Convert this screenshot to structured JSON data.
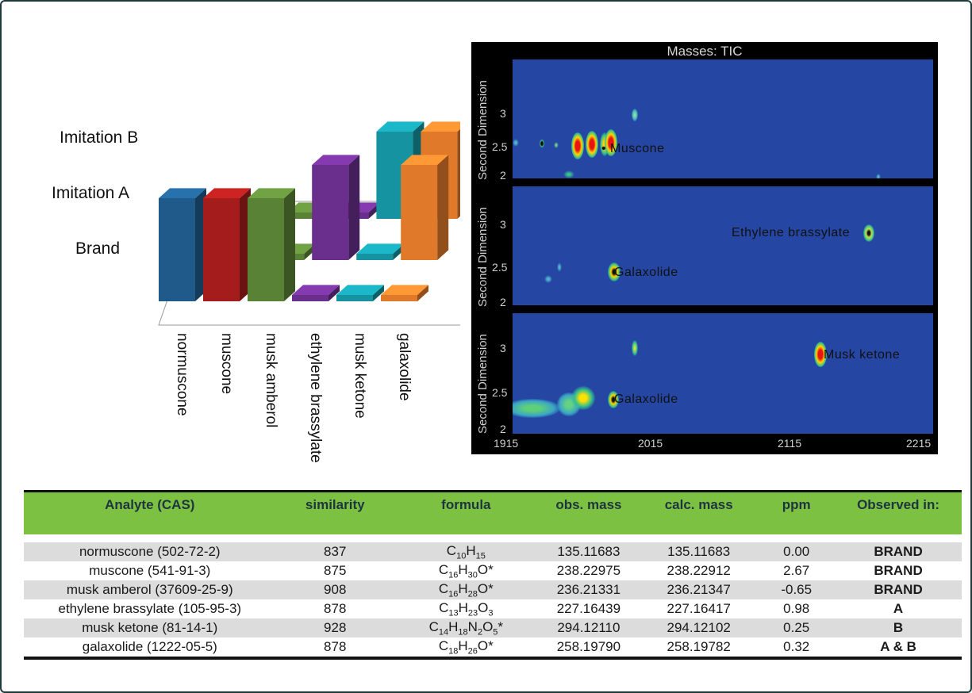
{
  "bar3d": {
    "row_labels": [
      "Imitation B",
      "Imitation A",
      "Brand"
    ],
    "categories": [
      "normuscone",
      "muscone",
      "musk amberol",
      "ethylene brassylate",
      "musk ketone",
      "galaxolide"
    ],
    "colors": [
      "#1f5a8a",
      "#a51c1c",
      "#5a8236",
      "#6a2f8c",
      "#1593a0",
      "#e07a2a"
    ],
    "present": {
      "Brand": [
        true,
        true,
        true,
        false,
        false,
        false
      ],
      "Imitation A": [
        false,
        false,
        false,
        true,
        false,
        true
      ],
      "Imitation B": [
        false,
        false,
        false,
        false,
        true,
        true
      ]
    }
  },
  "heatmap": {
    "title": "Masses: TIC",
    "ylabel": "Second Dimension",
    "yticks": [
      "3",
      "2.5",
      "2"
    ],
    "xticks": [
      "1915",
      "2015",
      "2115",
      "2215"
    ],
    "panel1_labels": [
      "Muscone"
    ],
    "panel2_labels": [
      "Ethylene brassylate",
      "Galaxolide"
    ],
    "panel3_labels": [
      "Musk ketone",
      "Galaxolide"
    ]
  },
  "table": {
    "headers": [
      "Analyte (CAS)",
      "similarity",
      "formula",
      "obs. mass",
      "calc. mass",
      "ppm",
      "Observed in:"
    ],
    "rows": [
      {
        "analyte": "normuscone (502-72-2)",
        "similarity": "837",
        "formula": [
          [
            "C",
            "10"
          ],
          [
            "H",
            "15"
          ]
        ],
        "formula_suffix": "",
        "obs": "135.11683",
        "calc": "135.11683",
        "ppm": "0.00",
        "observed": "BRAND"
      },
      {
        "analyte": "muscone (541-91-3)",
        "similarity": "875",
        "formula": [
          [
            "C",
            "16"
          ],
          [
            "H",
            "30"
          ],
          [
            "O",
            ""
          ]
        ],
        "formula_suffix": "*",
        "obs": "238.22975",
        "calc": "238.22912",
        "ppm": "2.67",
        "observed": "BRAND"
      },
      {
        "analyte": "musk amberol (37609-25-9)",
        "similarity": "908",
        "formula": [
          [
            "C",
            "16"
          ],
          [
            "H",
            "28"
          ],
          [
            "O",
            ""
          ]
        ],
        "formula_suffix": "*",
        "obs": "236.21331",
        "calc": "236.21347",
        "ppm": "-0.65",
        "observed": "BRAND"
      },
      {
        "analyte": "ethylene brassylate (105-95-3)",
        "similarity": "878",
        "formula": [
          [
            "C",
            "13"
          ],
          [
            "H",
            "23"
          ],
          [
            "O",
            "3"
          ]
        ],
        "formula_suffix": "",
        "obs": "227.16439",
        "calc": "227.16417",
        "ppm": "0.98",
        "observed": "A"
      },
      {
        "analyte": "musk ketone (81-14-1)",
        "similarity": "928",
        "formula": [
          [
            "C",
            "14"
          ],
          [
            "H",
            "18"
          ],
          [
            "N",
            "2"
          ],
          [
            "O",
            "5"
          ]
        ],
        "formula_suffix": "*",
        "obs": "294.12110",
        "calc": "294.12102",
        "ppm": "0.25",
        "observed": "B"
      },
      {
        "analyte": "galaxolide (1222-05-5)",
        "similarity": "878",
        "formula": [
          [
            "C",
            "18"
          ],
          [
            "H",
            "26"
          ],
          [
            "O",
            ""
          ]
        ],
        "formula_suffix": "*",
        "obs": "258.19790",
        "calc": "258.19782",
        "ppm": "0.32",
        "observed": "A & B"
      }
    ]
  },
  "chart_data": [
    {
      "type": "bar",
      "categories": [
        "normuscone",
        "muscone",
        "musk amberol",
        "ethylene brassylate",
        "musk ketone",
        "galaxolide"
      ],
      "series": [
        {
          "name": "Brand",
          "values": [
            1,
            1,
            1,
            0,
            0,
            0
          ]
        },
        {
          "name": "Imitation A",
          "values": [
            0,
            0,
            0,
            1,
            0,
            1
          ]
        },
        {
          "name": "Imitation B",
          "values": [
            0,
            0,
            0,
            0,
            1,
            1
          ]
        }
      ]
    },
    {
      "type": "heatmap",
      "title": "Masses: TIC",
      "ylabel": "Second Dimension",
      "xlim": [
        1915,
        2225
      ],
      "ylim": [
        2,
        3.4
      ],
      "panels": [
        {
          "peaks": [
            {
              "label": "Muscone",
              "x": 1983,
              "y": 2.4
            }
          ]
        },
        {
          "peaks": [
            {
              "label": "Galaxolide",
              "x": 1998,
              "y": 2.4
            },
            {
              "label": "Ethylene brassylate",
              "x": 2179,
              "y": 2.9
            }
          ]
        },
        {
          "peaks": [
            {
              "label": "Galaxolide",
              "x": 1998,
              "y": 2.4
            },
            {
              "label": "Musk ketone",
              "x": 2131,
              "y": 2.95
            }
          ]
        }
      ]
    }
  ]
}
